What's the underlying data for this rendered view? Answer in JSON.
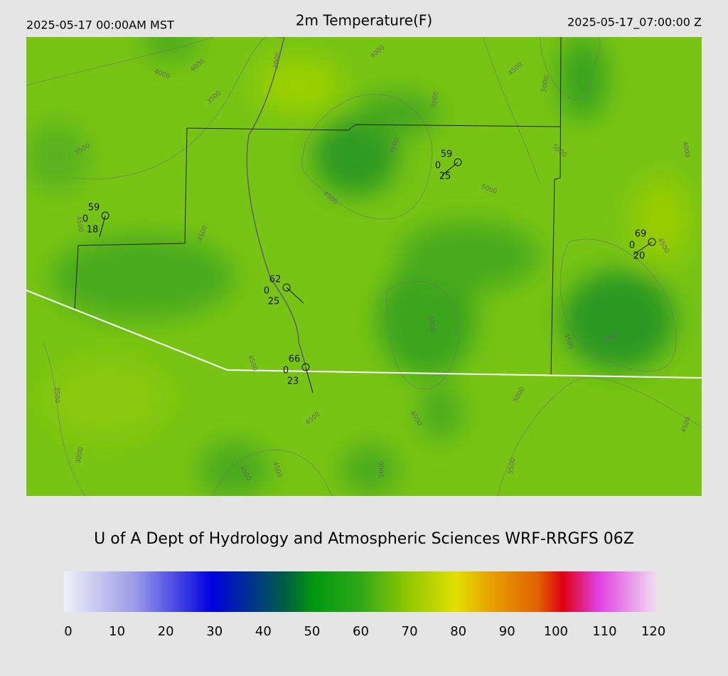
{
  "header": {
    "left": "2025-05-17 00:00AM MST",
    "title": "2m Temperature(F)",
    "right": "2025-05-17_07:00:00 Z"
  },
  "map": {
    "contour_labels": [
      "4000",
      "4000",
      "3000",
      "4000",
      "3500",
      "4500",
      "5000",
      "5000",
      "3500",
      "3500",
      "5000",
      "5000",
      "4500",
      "4000",
      "4500",
      "4500",
      "4500",
      "5000",
      "4500",
      "5000",
      "3500",
      "4500",
      "4500",
      "5000",
      "4500",
      "4500",
      "3000",
      "4500",
      "4000",
      "5000",
      "5500"
    ],
    "stations": [
      {
        "temp": "59",
        "dew": "0",
        "wind": "18"
      },
      {
        "temp": "59",
        "dew": "0",
        "wind": "25"
      },
      {
        "temp": "69",
        "dew": "0",
        "wind": "20"
      },
      {
        "temp": "62",
        "dew": "0",
        "wind": "25"
      },
      {
        "temp": "66",
        "dew": "0",
        "wind": "23"
      }
    ]
  },
  "footer": {
    "credit": "U of A Dept of Hydrology and Atmospheric Sciences WRF-RRGFS 06Z"
  },
  "colorbar": {
    "ticks": [
      "0",
      "10",
      "20",
      "30",
      "40",
      "50",
      "60",
      "70",
      "80",
      "90",
      "100",
      "110",
      "120"
    ]
  }
}
